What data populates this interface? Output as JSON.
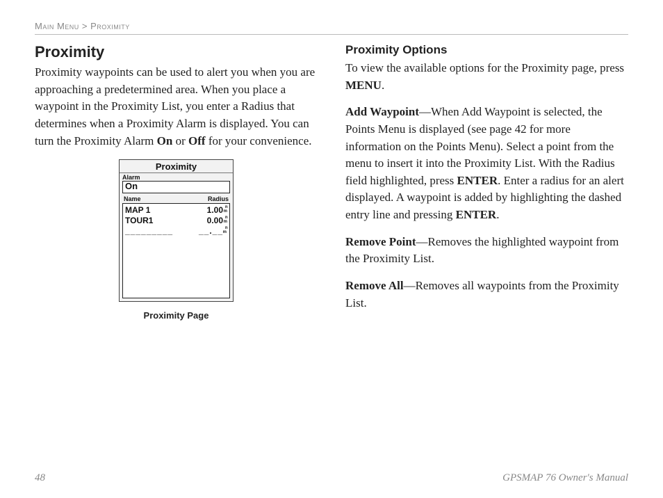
{
  "breadcrumb": {
    "part1": "Main Menu",
    "sep": ">",
    "part2": "Proximity"
  },
  "left": {
    "title": "Proximity",
    "intro_1": "Proximity waypoints can be used to alert you when you are approaching a predetermined area. When you place a waypoint in the Proximity List, you enter a Radius that determines when a Proximity Alarm is displayed. You can turn the Proximity Alarm ",
    "intro_on": "On",
    "intro_or": " or ",
    "intro_off": "Off",
    "intro_2": " for your convenience."
  },
  "screen": {
    "title": "Proximity",
    "alarm_label": "Alarm",
    "alarm_value": "On",
    "col_name": "Name",
    "col_radius": "Radius",
    "rows": [
      {
        "name": "MAP 1",
        "radius": "1.00"
      },
      {
        "name": "TOUR1",
        "radius": "0.00"
      }
    ],
    "dash_name": "_________",
    "dash_radius": "__.__",
    "unit_top": "n",
    "unit_bot": "m",
    "caption": "Proximity Page"
  },
  "right": {
    "title": "Proximity Options",
    "p1_a": "To view the available options for the Proximity page, press ",
    "p1_menu": "MENU",
    "p1_b": ".",
    "p2_lead": "Add Waypoint",
    "p2_a": "—When Add Waypoint is selected, the Points Menu is displayed (see page 42 for more information on the Points Menu). Select a point from the menu to insert it into the Proximity List. With the Radius field highlighted, press ",
    "p2_enter1": "ENTER",
    "p2_b": ". Enter a radius for an alert displayed. A waypoint is added by highlighting the dashed entry line and pressing ",
    "p2_enter2": "ENTER",
    "p2_c": ".",
    "p3_lead": "Remove Point",
    "p3_a": "—Removes the highlighted waypoint from the Proximity List.",
    "p4_lead": "Remove All",
    "p4_a": "—Removes all waypoints from the Proximity List."
  },
  "footer": {
    "page": "48",
    "manual": "GPSMAP 76 Owner's Manual"
  }
}
